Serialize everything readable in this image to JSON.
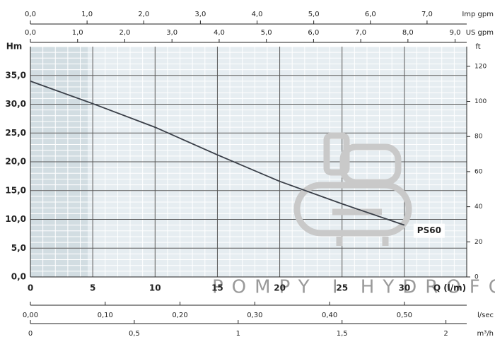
{
  "chart_data": {
    "type": "line",
    "y_label": "Hm",
    "x_label": "Q (l/m)",
    "y2_label": "ft",
    "xlim": [
      0,
      35
    ],
    "xticks": [
      0,
      5,
      10,
      15,
      20,
      25,
      30
    ],
    "ylim": [
      0,
      40
    ],
    "yticks": [
      {
        "value": 0,
        "label": "0,0"
      },
      {
        "value": 5,
        "label": "5,0"
      },
      {
        "value": 10,
        "label": "10,0"
      },
      {
        "value": 15,
        "label": "15,0"
      },
      {
        "value": 20,
        "label": "20,0"
      },
      {
        "value": 25,
        "label": "25,0"
      },
      {
        "value": 30,
        "label": "30,0"
      },
      {
        "value": 35,
        "label": "35,0"
      }
    ],
    "y2lim": [
      0,
      131.2
    ],
    "y2ticks": [
      0,
      20,
      40,
      60,
      80,
      100,
      120
    ],
    "grid": true,
    "series": [
      {
        "name": "PS60",
        "color": "#3a3f48",
        "x": [
          0,
          5,
          10,
          15,
          20,
          25,
          30
        ],
        "values": [
          34,
          30.1,
          26,
          21.2,
          16.6,
          12.7,
          9.0
        ]
      }
    ],
    "top_axes": [
      {
        "label": "Imp gpm",
        "lim": [
          0,
          7.7
        ],
        "ticks": [
          {
            "value": 0,
            "label": "0,0"
          },
          {
            "value": 1,
            "label": "1,0"
          },
          {
            "value": 2,
            "label": "2,0"
          },
          {
            "value": 3,
            "label": "3,0"
          },
          {
            "value": 4,
            "label": "4,0"
          },
          {
            "value": 5,
            "label": "5,0"
          },
          {
            "value": 6,
            "label": "6,0"
          },
          {
            "value": 7,
            "label": "7,0"
          }
        ]
      },
      {
        "label": "US gpm",
        "lim": [
          0,
          9.246
        ],
        "ticks": [
          {
            "value": 0,
            "label": "0,0"
          },
          {
            "value": 1,
            "label": "1,0"
          },
          {
            "value": 2,
            "label": "2,0"
          },
          {
            "value": 3,
            "label": "3,0"
          },
          {
            "value": 4,
            "label": "4,0"
          },
          {
            "value": 5,
            "label": "5,0"
          },
          {
            "value": 6,
            "label": "6,0"
          },
          {
            "value": 7,
            "label": "7,0"
          },
          {
            "value": 8,
            "label": "8,0"
          },
          {
            "value": 9,
            "label": "9,0"
          }
        ]
      }
    ],
    "bottom_axes": [
      {
        "label": "l/sec",
        "lim": [
          0,
          0.5833
        ],
        "ticks": [
          {
            "value": 0,
            "label": "0,00"
          },
          {
            "value": 0.1,
            "label": "0,10"
          },
          {
            "value": 0.2,
            "label": "0,20"
          },
          {
            "value": 0.3,
            "label": "0,30"
          },
          {
            "value": 0.4,
            "label": "0,40"
          },
          {
            "value": 0.5,
            "label": "0,50"
          }
        ]
      },
      {
        "label": "m³/h",
        "lim": [
          0,
          2.1
        ],
        "ticks": [
          0,
          {
            "value": 0.5,
            "label": "0,5"
          },
          1,
          {
            "value": 1.5,
            "label": "1,5"
          },
          2
        ]
      }
    ],
    "watermark": "POMPY I HYDROFO"
  }
}
